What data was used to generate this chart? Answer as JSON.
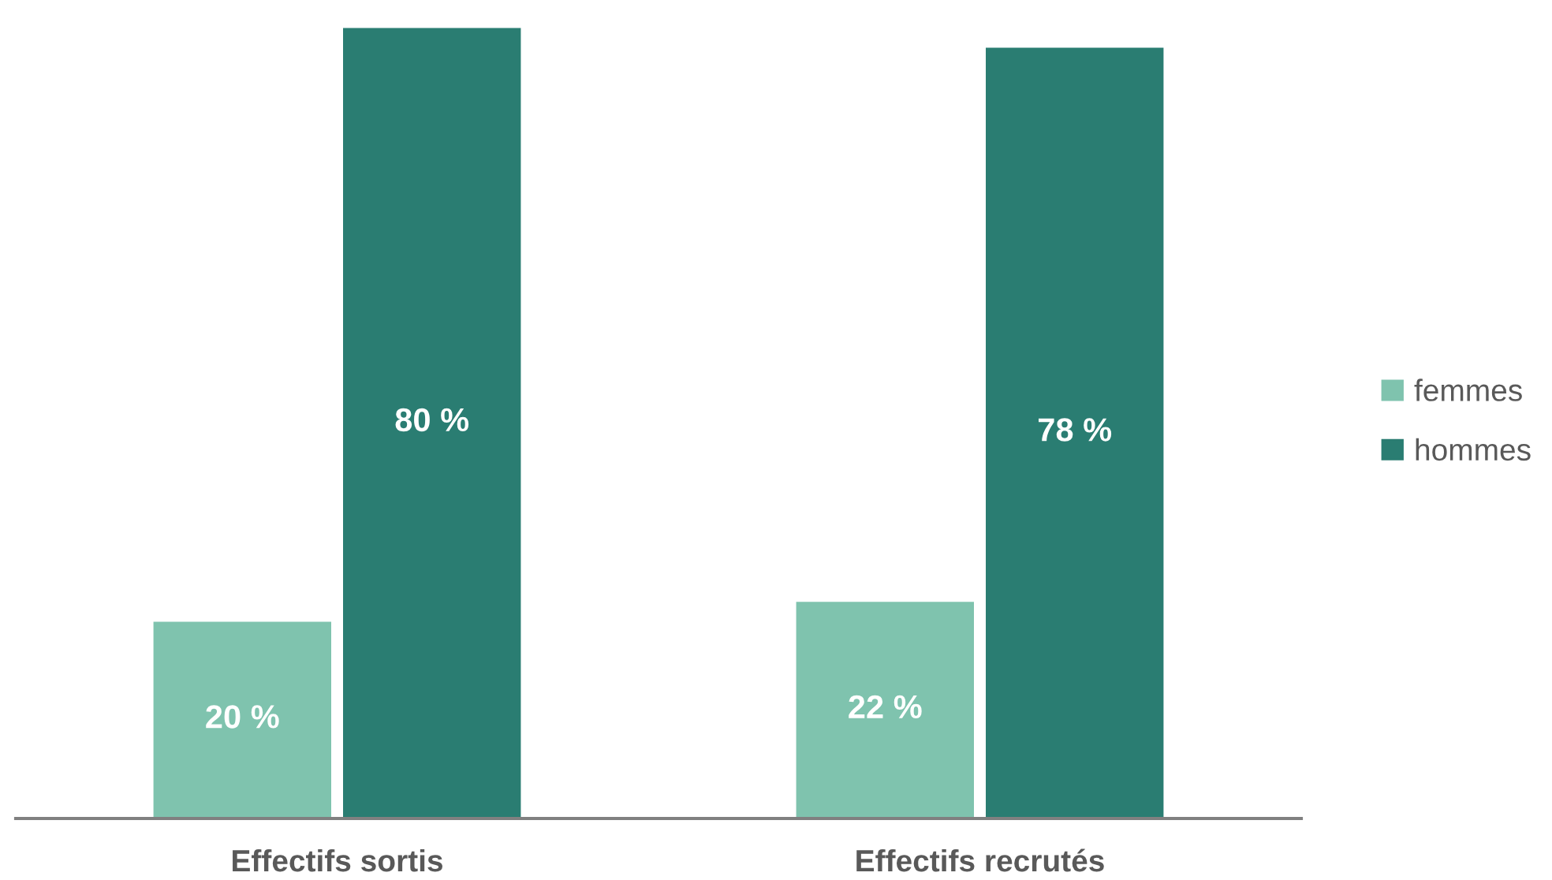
{
  "chart_data": {
    "type": "bar",
    "categories": [
      "Effectifs sortis",
      "Effectifs recrutés"
    ],
    "series": [
      {
        "name": "femmes",
        "color": "#7fc3ae",
        "values": [
          20,
          22
        ],
        "value_labels": [
          "20 %",
          "22 %"
        ]
      },
      {
        "name": "hommes",
        "color": "#2a7d72",
        "values": [
          80,
          78
        ],
        "value_labels": [
          "80 %",
          "78 %"
        ]
      }
    ],
    "legend": "right",
    "grid": false
  }
}
